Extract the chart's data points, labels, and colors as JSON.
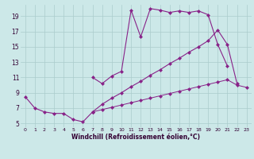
{
  "xlabel": "Windchill (Refroidissement éolien,°C)",
  "bg_color": "#cce8e8",
  "grid_color": "#aacccc",
  "line_color": "#882288",
  "xlim": [
    -0.5,
    23.5
  ],
  "ylim": [
    4.5,
    20.5
  ],
  "xticks": [
    0,
    1,
    2,
    3,
    4,
    5,
    6,
    7,
    8,
    9,
    10,
    11,
    12,
    13,
    14,
    15,
    16,
    17,
    18,
    19,
    20,
    21,
    22,
    23
  ],
  "yticks": [
    5,
    7,
    9,
    11,
    13,
    15,
    17,
    19
  ],
  "curve_left_x": [
    0,
    1,
    2,
    3,
    4,
    5,
    6,
    7
  ],
  "curve_left_y": [
    8.5,
    7.0,
    6.5,
    6.3,
    6.3,
    5.5,
    5.2,
    6.5
  ],
  "curve_upper_x": [
    7,
    8,
    9,
    10,
    11,
    12,
    13,
    14,
    15,
    16,
    17,
    18,
    19,
    20,
    21
  ],
  "curve_upper_y": [
    11.0,
    10.2,
    11.2,
    11.8,
    19.8,
    16.3,
    20.0,
    19.8,
    19.5,
    19.7,
    19.5,
    19.7,
    19.2,
    15.3,
    12.5
  ],
  "curve_mid_x": [
    7,
    8,
    9,
    10,
    11,
    12,
    13,
    14,
    15,
    16,
    17,
    18,
    19,
    20,
    21,
    22
  ],
  "curve_mid_y": [
    6.5,
    7.5,
    8.3,
    9.0,
    9.8,
    10.5,
    11.3,
    12.0,
    12.8,
    13.5,
    14.3,
    15.0,
    15.8,
    17.2,
    15.3,
    10.2
  ],
  "curve_low_x": [
    7,
    8,
    9,
    10,
    11,
    12,
    13,
    14,
    15,
    16,
    17,
    18,
    19,
    20,
    21,
    22,
    23
  ],
  "curve_low_y": [
    6.5,
    6.8,
    7.1,
    7.4,
    7.7,
    8.0,
    8.3,
    8.6,
    8.9,
    9.2,
    9.5,
    9.8,
    10.1,
    10.4,
    10.7,
    10.0,
    9.7
  ]
}
